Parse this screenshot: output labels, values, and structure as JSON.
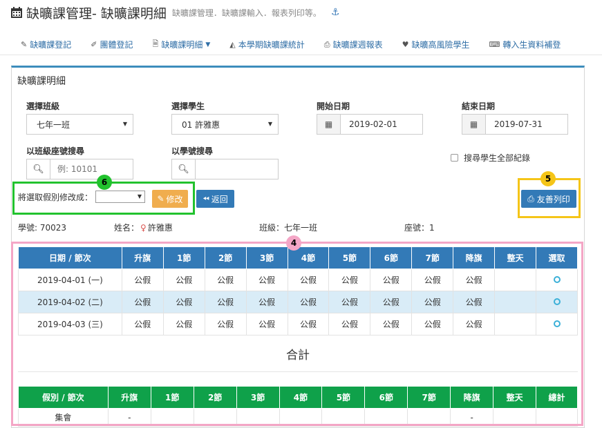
{
  "header": {
    "title": "缺曠課管理- 缺曠課明細",
    "subtitle": "缺曠課管理．缺曠課輸入．報表列印等。",
    "calendar_icon": "calendar-icon",
    "anchor_icon": "anchor-icon"
  },
  "nav": {
    "items": [
      {
        "label": "缺曠課登記",
        "icon": "pencil-icon"
      },
      {
        "label": "團體登記",
        "icon": "edit-icon"
      },
      {
        "label": "缺曠課明細",
        "icon": "file-icon"
      },
      {
        "label": "本學期缺曠課統計",
        "icon": "area-chart-icon"
      },
      {
        "label": "缺曠課週報表",
        "icon": "print-icon"
      },
      {
        "label": "缺曠高風險學生",
        "icon": "heartbeat-icon"
      },
      {
        "label": "轉入生資料補登",
        "icon": "keyboard-icon"
      }
    ]
  },
  "panel": {
    "title": "缺曠課明細"
  },
  "filters": {
    "class_label": "選擇班級",
    "class_value": "七年一班",
    "student_label": "選擇學生",
    "student_value": "01 許雅惠",
    "start_label": "開始日期",
    "start_value": "2019-02-01",
    "end_label": "結束日期",
    "end_value": "2019-07-31",
    "seat_search_label": "以班級座號搜尋",
    "seat_search_placeholder": "例: 10101",
    "id_search_label": "以學號搜尋",
    "id_search_placeholder": "",
    "all_records_label": "搜尋學生全部紀錄"
  },
  "actions": {
    "modify_label": "將選取假別修改成：",
    "modify_button": "修改",
    "back_button": "返回",
    "print_button": "友善列印"
  },
  "annotations": {
    "badge_4": "4",
    "badge_5": "5",
    "badge_6": "6"
  },
  "student": {
    "id_text": "學號: 70023",
    "name_label": "姓名：",
    "name": "許雅惠",
    "class_text": "班級：七年一班",
    "seat_text": "座號：1"
  },
  "detail_table": {
    "headers": [
      "日期 / 節次",
      "升旗",
      "1節",
      "2節",
      "3節",
      "4節",
      "5節",
      "6節",
      "7節",
      "降旗",
      "整天",
      "選取"
    ],
    "rows": [
      {
        "date": "2019-04-01 (一)",
        "cells": [
          "公假",
          "公假",
          "公假",
          "公假",
          "公假",
          "公假",
          "公假",
          "公假",
          "公假",
          ""
        ]
      },
      {
        "date": "2019-04-02 (二)",
        "cells": [
          "公假",
          "公假",
          "公假",
          "公假",
          "公假",
          "公假",
          "公假",
          "公假",
          "公假",
          ""
        ]
      },
      {
        "date": "2019-04-03 (三)",
        "cells": [
          "公假",
          "公假",
          "公假",
          "公假",
          "公假",
          "公假",
          "公假",
          "公假",
          "公假",
          ""
        ]
      }
    ]
  },
  "total": {
    "title": "合計",
    "headers": [
      "假別 / 節次",
      "升旗",
      "1節",
      "2節",
      "3節",
      "4節",
      "5節",
      "6節",
      "7節",
      "降旗",
      "整天",
      "總計"
    ],
    "rows": [
      {
        "label": "集會",
        "cells": [
          "-",
          "",
          "",
          "",
          "",
          "",
          "",
          "",
          "-",
          "",
          ""
        ]
      }
    ]
  }
}
